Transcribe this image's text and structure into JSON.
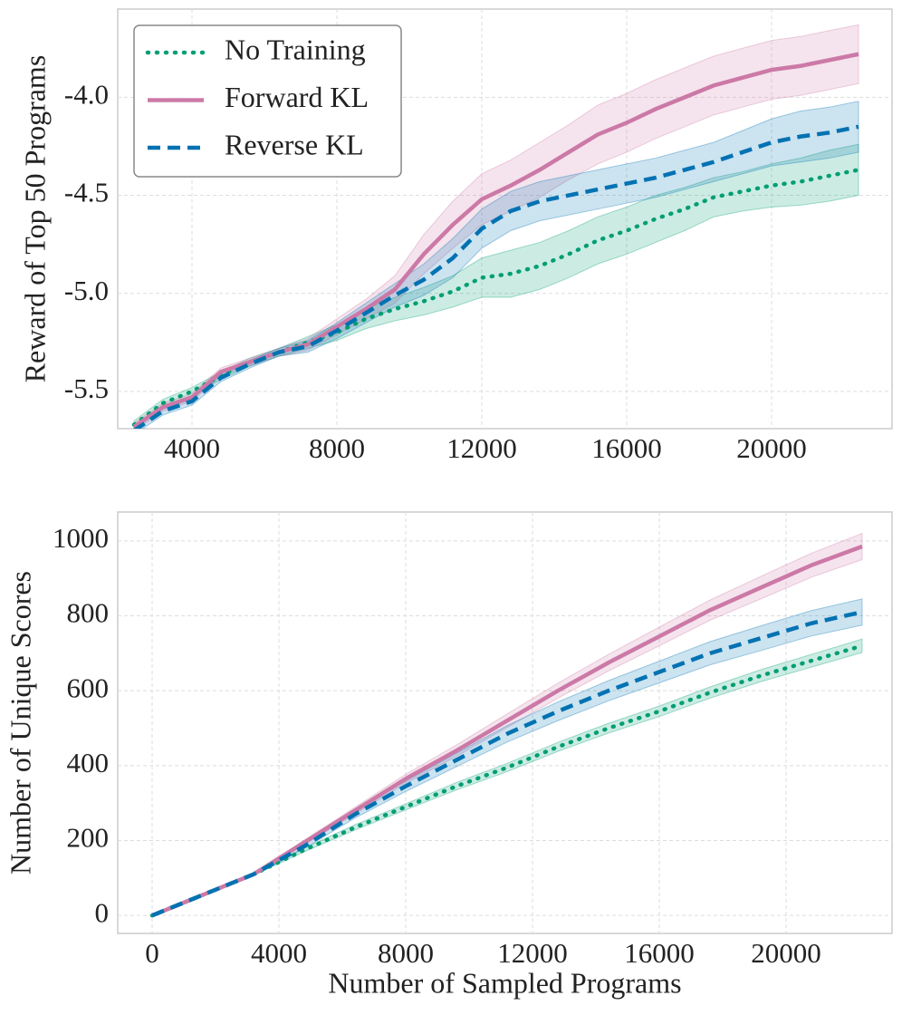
{
  "chart_data": [
    {
      "type": "line",
      "ylabel": "Reward of Top 50 Programs",
      "legend": "upper left",
      "grid": true,
      "xlim": [
        1950,
        23325
      ],
      "ylim": [
        -5.69,
        -3.55
      ],
      "xticks": [
        4000,
        8000,
        12000,
        16000,
        20000
      ],
      "yticks": [
        {
          "value": -4,
          "label": "-4.0"
        },
        -4.5,
        {
          "value": -5,
          "label": "-5.0"
        },
        -5.5
      ],
      "x": [
        2400,
        3200,
        4000,
        4800,
        5600,
        6400,
        7200,
        8000,
        8800,
        9600,
        10400,
        11200,
        12000,
        12800,
        13600,
        14400,
        15200,
        16000,
        16800,
        17600,
        18400,
        19200,
        20000,
        20800,
        21600,
        22400
      ],
      "series": [
        {
          "name": "No Training",
          "color": "#009e73",
          "dash": "dotted",
          "values": [
            -5.67,
            -5.56,
            -5.5,
            -5.42,
            -5.35,
            -5.3,
            -5.25,
            -5.2,
            -5.13,
            -5.08,
            -5.04,
            -4.99,
            -4.92,
            -4.9,
            -4.86,
            -4.8,
            -4.73,
            -4.68,
            -4.62,
            -4.57,
            -4.51,
            -4.48,
            -4.45,
            -4.43,
            -4.4,
            -4.37
          ],
          "error": [
            0.02,
            0.02,
            0.02,
            0.02,
            0.02,
            0.02,
            0.03,
            0.04,
            0.05,
            0.06,
            0.07,
            0.08,
            0.1,
            0.12,
            0.12,
            0.12,
            0.12,
            0.12,
            0.12,
            0.11,
            0.1,
            0.1,
            0.11,
            0.12,
            0.13,
            0.13
          ]
        },
        {
          "name": "Forward KL",
          "color": "#cc79a7",
          "dash": "solid",
          "values": [
            -5.68,
            -5.58,
            -5.53,
            -5.4,
            -5.35,
            -5.3,
            -5.26,
            -5.17,
            -5.08,
            -4.98,
            -4.8,
            -4.65,
            -4.52,
            -4.45,
            -4.37,
            -4.28,
            -4.19,
            -4.13,
            -4.06,
            -4.0,
            -3.94,
            -3.9,
            -3.86,
            -3.84,
            -3.81,
            -3.78
          ],
          "error": [
            0.02,
            0.02,
            0.02,
            0.02,
            0.02,
            0.02,
            0.03,
            0.04,
            0.05,
            0.07,
            0.1,
            0.12,
            0.13,
            0.13,
            0.14,
            0.14,
            0.15,
            0.15,
            0.15,
            0.15,
            0.15,
            0.15,
            0.15,
            0.15,
            0.15,
            0.15
          ]
        },
        {
          "name": "Reverse KL",
          "color": "#0072b2",
          "dash": "dashed",
          "values": [
            -5.7,
            -5.6,
            -5.55,
            -5.43,
            -5.36,
            -5.3,
            -5.27,
            -5.19,
            -5.1,
            -5.01,
            -4.93,
            -4.82,
            -4.67,
            -4.58,
            -4.53,
            -4.5,
            -4.47,
            -4.44,
            -4.41,
            -4.37,
            -4.33,
            -4.28,
            -4.23,
            -4.2,
            -4.18,
            -4.15
          ],
          "error": [
            0.02,
            0.02,
            0.02,
            0.02,
            0.02,
            0.02,
            0.03,
            0.04,
            0.05,
            0.06,
            0.08,
            0.1,
            0.1,
            0.1,
            0.1,
            0.1,
            0.1,
            0.1,
            0.1,
            0.1,
            0.1,
            0.11,
            0.12,
            0.13,
            0.13,
            0.13
          ]
        }
      ]
    },
    {
      "type": "line",
      "xlabel": "Number of Sampled Programs",
      "ylabel": "Number of Unique Scores",
      "grid": true,
      "xlim": [
        -1086,
        23343
      ],
      "ylim": [
        -48,
        1077
      ],
      "xticks": [
        0,
        4000,
        8000,
        12000,
        16000,
        20000
      ],
      "yticks": [
        0,
        200,
        400,
        600,
        800,
        1000
      ],
      "x": [
        0,
        1600,
        3200,
        4800,
        6400,
        8000,
        9600,
        11200,
        12800,
        14400,
        16000,
        17600,
        19200,
        20800,
        22400
      ],
      "series": [
        {
          "color": "#009e73",
          "dash": "dotted",
          "values": [
            0,
            55,
            110,
            175,
            235,
            290,
            345,
            395,
            450,
            500,
            545,
            595,
            640,
            680,
            720
          ],
          "error": [
            0,
            2,
            3,
            5,
            7,
            8,
            10,
            11,
            12,
            13,
            14,
            15,
            16,
            17,
            18
          ]
        },
        {
          "color": "#cc79a7",
          "dash": "solid",
          "values": [
            0,
            55,
            110,
            195,
            280,
            365,
            440,
            520,
            600,
            675,
            745,
            815,
            875,
            935,
            985
          ],
          "error": [
            0,
            2,
            3,
            6,
            9,
            12,
            15,
            18,
            20,
            22,
            25,
            27,
            30,
            32,
            35
          ]
        },
        {
          "color": "#0072b2",
          "dash": "dashed",
          "values": [
            0,
            55,
            110,
            185,
            270,
            345,
            415,
            485,
            545,
            600,
            650,
            700,
            740,
            780,
            810
          ],
          "error": [
            0,
            2,
            3,
            6,
            10,
            14,
            18,
            22,
            25,
            27,
            29,
            31,
            33,
            34,
            35
          ]
        }
      ]
    }
  ]
}
